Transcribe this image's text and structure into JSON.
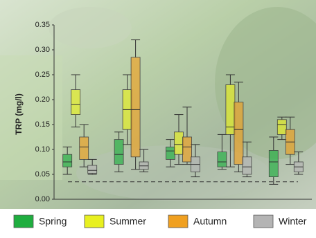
{
  "chart_data": {
    "type": "box",
    "y_label": "TRP (mg/l)",
    "categories": [
      null,
      null,
      null,
      null,
      null
    ],
    "ylim": [
      0,
      0.35
    ],
    "yticks": [
      {
        "value": 0,
        "label": "0.00"
      },
      {
        "value": 0.05,
        "label": "0.05"
      },
      {
        "value": 0.1,
        "label": "0.10"
      },
      {
        "value": 0.15,
        "label": "0.15"
      },
      {
        "value": 0.2,
        "label": "0.20"
      },
      {
        "value": 0.25,
        "label": "0.25"
      },
      {
        "value": 0.3,
        "label": "0.30"
      },
      {
        "value": 0.35,
        "label": "0.35"
      }
    ],
    "reference_line": 0.035,
    "legend": "bottom",
    "series": [
      {
        "name": "Spring",
        "color": "#1fae3f",
        "values": [
          {
            "min": 0.05,
            "q1": 0.065,
            "median": 0.075,
            "q3": 0.09,
            "max": 0.105
          },
          {
            "min": 0.055,
            "q1": 0.07,
            "median": 0.09,
            "q3": 0.12,
            "max": 0.135
          },
          {
            "min": 0.065,
            "q1": 0.08,
            "median": 0.097,
            "q3": 0.105,
            "max": 0.12
          },
          {
            "min": 0.06,
            "q1": 0.065,
            "median": 0.075,
            "q3": 0.095,
            "max": 0.13
          },
          {
            "min": 0.03,
            "q1": 0.045,
            "median": 0.075,
            "q3": 0.098,
            "max": 0.125
          }
        ]
      },
      {
        "name": "Summer",
        "color": "#e8f020",
        "values": [
          {
            "min": 0.145,
            "q1": 0.17,
            "median": 0.19,
            "q3": 0.22,
            "max": 0.25
          },
          {
            "min": 0.11,
            "q1": 0.14,
            "median": 0.18,
            "q3": 0.22,
            "max": 0.25
          },
          {
            "min": 0.07,
            "q1": 0.09,
            "median": 0.11,
            "q3": 0.135,
            "max": 0.17
          },
          {
            "min": 0.065,
            "q1": 0.13,
            "median": 0.145,
            "q3": 0.23,
            "max": 0.25
          },
          {
            "min": 0.12,
            "q1": 0.13,
            "median": 0.15,
            "q3": 0.16,
            "max": 0.165
          }
        ]
      },
      {
        "name": "Autumn",
        "color": "#f0a020",
        "values": [
          {
            "min": 0.065,
            "q1": 0.08,
            "median": 0.105,
            "q3": 0.125,
            "max": 0.15
          },
          {
            "min": 0.06,
            "q1": 0.085,
            "median": 0.18,
            "q3": 0.285,
            "max": 0.32
          },
          {
            "min": 0.07,
            "q1": 0.075,
            "median": 0.105,
            "q3": 0.125,
            "max": 0.185
          },
          {
            "min": 0.055,
            "q1": 0.07,
            "median": 0.14,
            "q3": 0.195,
            "max": 0.235
          },
          {
            "min": 0.07,
            "q1": 0.09,
            "median": 0.115,
            "q3": 0.14,
            "max": 0.165
          }
        ]
      },
      {
        "name": "Winter",
        "color": "#b4b4b4",
        "values": [
          {
            "min": 0.05,
            "q1": 0.052,
            "median": 0.058,
            "q3": 0.068,
            "max": 0.08
          },
          {
            "min": 0.055,
            "q1": 0.06,
            "median": 0.067,
            "q3": 0.075,
            "max": 0.1
          },
          {
            "min": 0.045,
            "q1": 0.055,
            "median": 0.07,
            "q3": 0.085,
            "max": 0.11
          },
          {
            "min": 0.045,
            "q1": 0.05,
            "median": 0.065,
            "q3": 0.085,
            "max": 0.115
          },
          {
            "min": 0.05,
            "q1": 0.055,
            "median": 0.065,
            "q3": 0.075,
            "max": 0.095
          }
        ]
      }
    ]
  }
}
